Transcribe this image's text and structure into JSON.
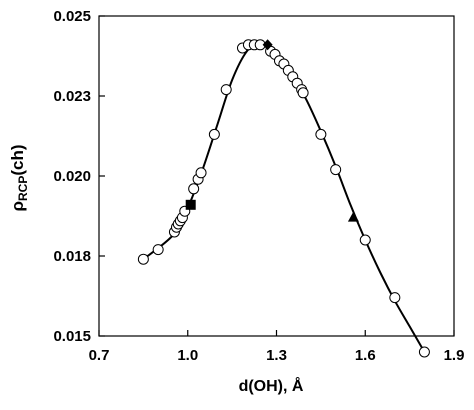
{
  "chart_data": {
    "type": "scatter",
    "xlabel": "d(OH), Å",
    "ylabel": {
      "main": "ρ",
      "sub": "RCP",
      "tail": "(ch)"
    },
    "xlim": [
      0.7,
      1.9
    ],
    "ylim": [
      0.015,
      0.025
    ],
    "x_ticks": [
      0.7,
      1.0,
      1.3,
      1.6,
      1.9
    ],
    "x_tick_labels": [
      "0.7",
      "1.0",
      "1.3",
      "1.6",
      "1.9"
    ],
    "y_ticks": [
      0.015,
      0.0175,
      0.02,
      0.0225,
      0.025
    ],
    "y_tick_labels": [
      "0.015",
      "0.018",
      "0.020",
      "0.023",
      "0.025"
    ],
    "grid": false,
    "legend": "none",
    "series": [
      {
        "marker": "open-circle",
        "x": [
          0.85,
          0.9,
          0.955,
          0.962,
          0.968,
          0.975,
          0.982,
          0.99,
          1.02,
          1.035,
          1.045,
          1.09,
          1.13,
          1.185,
          1.205,
          1.225,
          1.245,
          1.28,
          1.295,
          1.31,
          1.325,
          1.34,
          1.355,
          1.37,
          1.385,
          1.39,
          1.45,
          1.5,
          1.6,
          1.7,
          1.8
        ],
        "y": [
          0.0174,
          0.0177,
          0.01825,
          0.0184,
          0.0185,
          0.0186,
          0.0187,
          0.0189,
          0.0196,
          0.0199,
          0.0201,
          0.0213,
          0.0227,
          0.024,
          0.0241,
          0.0241,
          0.0241,
          0.0239,
          0.0238,
          0.0236,
          0.0235,
          0.0233,
          0.0231,
          0.0229,
          0.0227,
          0.0226,
          0.0213,
          0.0202,
          0.018,
          0.0162,
          0.0145
        ]
      },
      {
        "marker": "filled-square",
        "x": [
          1.01
        ],
        "y": [
          0.0191
        ]
      },
      {
        "marker": "filled-diamond",
        "x": [
          1.27
        ],
        "y": [
          0.0241
        ]
      },
      {
        "marker": "filled-triangle",
        "x": [
          1.56
        ],
        "y": [
          0.0187
        ]
      }
    ],
    "fit_line": {
      "x": [
        0.85,
        0.95,
        1.0,
        1.05,
        1.1,
        1.15,
        1.2,
        1.24,
        1.27,
        1.3,
        1.35,
        1.4,
        1.45,
        1.5,
        1.55,
        1.6,
        1.65,
        1.7,
        1.75,
        1.8
      ],
      "y": [
        0.0174,
        0.01815,
        0.019,
        0.0202,
        0.0216,
        0.023,
        0.0239,
        0.0241,
        0.02405,
        0.0238,
        0.0232,
        0.0224,
        0.0214,
        0.0203,
        0.0191,
        0.018,
        0.017,
        0.0161,
        0.0153,
        0.0145
      ]
    }
  }
}
